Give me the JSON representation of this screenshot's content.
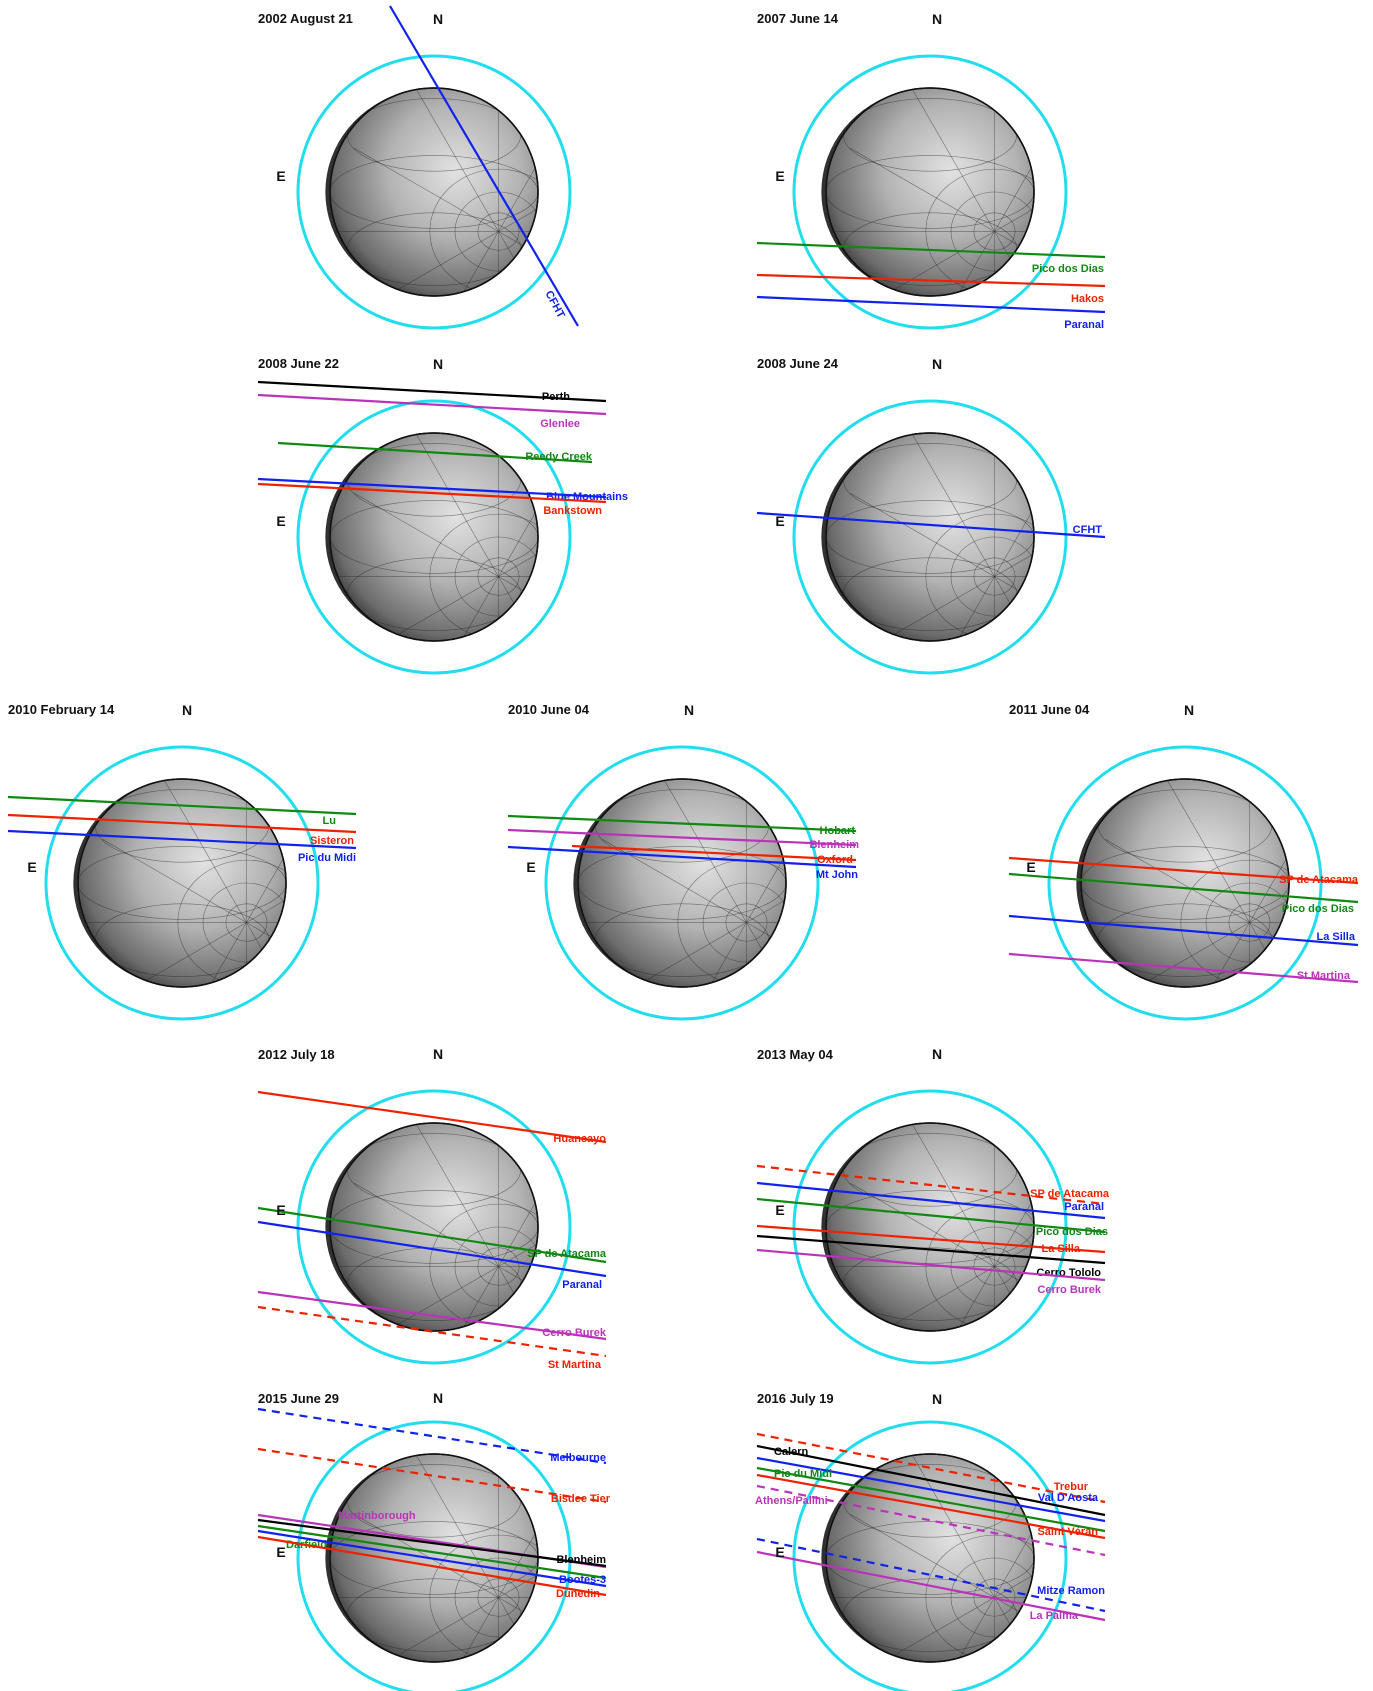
{
  "colors": {
    "ring": "#22ddee",
    "black": "#000000",
    "red": "#ee2200",
    "green": "#118811",
    "blue": "#1122ee",
    "magenta": "#bb33bb"
  },
  "panels": [
    {
      "date": "2002 August 21",
      "north": "N",
      "east": "E",
      "chords": [
        {
          "label": "CFHT",
          "color": "blue",
          "style": "solid"
        }
      ]
    },
    {
      "date": "2007 June 14",
      "north": "N",
      "east": "E",
      "chords": [
        {
          "label": "Pico dos Dias",
          "color": "green",
          "style": "solid"
        },
        {
          "label": "Hakos",
          "color": "red",
          "style": "solid"
        },
        {
          "label": "Paranal",
          "color": "blue",
          "style": "solid"
        }
      ]
    },
    {
      "date": "2008 June 22",
      "north": "N",
      "east": "E",
      "chords": [
        {
          "label": "Perth",
          "color": "black",
          "style": "solid"
        },
        {
          "label": "Glenlee",
          "color": "magenta",
          "style": "solid"
        },
        {
          "label": "Reedy Creek",
          "color": "green",
          "style": "solid"
        },
        {
          "label": "Blue Mountains",
          "color": "blue",
          "style": "solid"
        },
        {
          "label": "Bankstown",
          "color": "red",
          "style": "solid"
        }
      ]
    },
    {
      "date": "2008 June 24",
      "north": "N",
      "east": "E",
      "chords": [
        {
          "label": "CFHT",
          "color": "blue",
          "style": "solid"
        }
      ]
    },
    {
      "date": "2010 February 14",
      "north": "N",
      "east": "E",
      "chords": [
        {
          "label": "Lu",
          "color": "green",
          "style": "solid"
        },
        {
          "label": "Sisteron",
          "color": "red",
          "style": "solid"
        },
        {
          "label": "Pic du Midi",
          "color": "blue",
          "style": "solid"
        }
      ]
    },
    {
      "date": "2010 June 04",
      "north": "N",
      "east": "E",
      "chords": [
        {
          "label": "Hobart",
          "color": "green",
          "style": "solid"
        },
        {
          "label": "Blenheim",
          "color": "magenta",
          "style": "solid"
        },
        {
          "label": "Oxford",
          "color": "red",
          "style": "solid"
        },
        {
          "label": "Mt John",
          "color": "blue",
          "style": "solid"
        }
      ]
    },
    {
      "date": "2011 June 04",
      "north": "N",
      "east": "E",
      "chords": [
        {
          "label": "SP de Atacama",
          "color": "red",
          "style": "solid"
        },
        {
          "label": "Pico dos Dias",
          "color": "green",
          "style": "solid"
        },
        {
          "label": "La Silla",
          "color": "blue",
          "style": "solid"
        },
        {
          "label": "St Martina",
          "color": "magenta",
          "style": "solid"
        }
      ]
    },
    {
      "date": "2012 July 18",
      "north": "N",
      "east": "E",
      "chords": [
        {
          "label": "Huancayo",
          "color": "red",
          "style": "solid"
        },
        {
          "label": "SP de Atacama",
          "color": "green",
          "style": "solid"
        },
        {
          "label": "Paranal",
          "color": "blue",
          "style": "solid"
        },
        {
          "label": "Cerro Burek",
          "color": "magenta",
          "style": "solid"
        },
        {
          "label": "St Martina",
          "color": "red",
          "style": "dashed"
        }
      ]
    },
    {
      "date": "2013 May 04",
      "north": "N",
      "east": "E",
      "chords": [
        {
          "label": "SP de Atacama",
          "color": "red",
          "style": "dashed"
        },
        {
          "label": "Paranal",
          "color": "blue",
          "style": "solid"
        },
        {
          "label": "Pico dos Dias",
          "color": "green",
          "style": "solid"
        },
        {
          "label": "La Silla",
          "color": "red",
          "style": "solid"
        },
        {
          "label": "Cerro Tololo",
          "color": "black",
          "style": "solid"
        },
        {
          "label": "Cerro Burek",
          "color": "magenta",
          "style": "solid"
        }
      ]
    },
    {
      "date": "2015 June 29",
      "north": "N",
      "east": "E",
      "chords": [
        {
          "label": "Melbourne",
          "color": "blue",
          "style": "dashed"
        },
        {
          "label": "Bisdee Tier",
          "color": "red",
          "style": "dashed"
        },
        {
          "label": "Martinborough",
          "color": "magenta",
          "style": "solid"
        },
        {
          "label": "Darfield",
          "color": "green",
          "style": "solid"
        },
        {
          "label": "Blenheim",
          "color": "black",
          "style": "solid"
        },
        {
          "label": "Bootes-3",
          "color": "blue",
          "style": "solid"
        },
        {
          "label": "Dunedin",
          "color": "red",
          "style": "solid"
        }
      ]
    },
    {
      "date": "2016 July 19",
      "north": "N",
      "east": "E",
      "chords": [
        {
          "label": "Trebur",
          "color": "red",
          "style": "dashed"
        },
        {
          "label": "Calern",
          "color": "black",
          "style": "solid"
        },
        {
          "label": "Val D'Aosta",
          "color": "blue",
          "style": "solid"
        },
        {
          "label": "Pic du Midi",
          "color": "green",
          "style": "solid"
        },
        {
          "label": "Saint Véran",
          "color": "red",
          "style": "solid"
        },
        {
          "label": "Athens/Pallini",
          "color": "magenta",
          "style": "dashed"
        },
        {
          "label": "Mitze Ramon",
          "color": "blue",
          "style": "dashed"
        },
        {
          "label": "La Palma",
          "color": "magenta",
          "style": "solid"
        }
      ]
    }
  ]
}
